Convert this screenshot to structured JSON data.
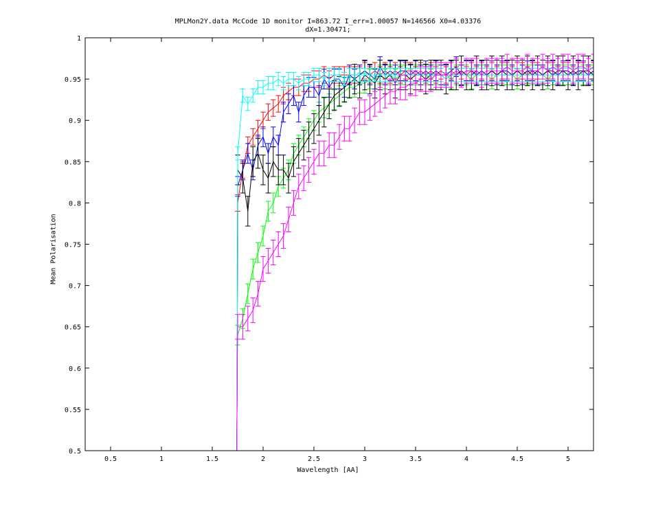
{
  "chart_data": {
    "type": "line",
    "title": "MPLMon2Y.data McCode 1D monitor I=863.72 I_err=1.00057 N=146566 X0=4.03376",
    "subtitle": "dX=1.30471;",
    "xlabel": "Wavelength [AA]",
    "ylabel": "Mean Polarisation",
    "xlim": [
      0.25,
      5.25
    ],
    "ylim": [
      0.5,
      1.0
    ],
    "xticks": [
      "0.5",
      "1",
      "1.5",
      "2",
      "2.5",
      "3",
      "3.5",
      "4",
      "4.5",
      "5"
    ],
    "yticks": [
      "0.5",
      "0.55",
      "0.6",
      "0.65",
      "0.7",
      "0.75",
      "0.8",
      "0.85",
      "0.9",
      "0.95",
      "1"
    ],
    "grid": false,
    "legend": "none",
    "x": [
      1.75,
      1.8,
      1.85,
      1.9,
      1.95,
      2.0,
      2.05,
      2.1,
      2.15,
      2.2,
      2.25,
      2.3,
      2.35,
      2.4,
      2.45,
      2.5,
      2.55,
      2.6,
      2.65,
      2.7,
      2.75,
      2.8,
      2.85,
      2.9,
      2.95,
      3.0,
      3.05,
      3.1,
      3.15,
      3.2,
      3.25,
      3.3,
      3.35,
      3.4,
      3.45,
      3.5,
      3.55,
      3.6,
      3.65,
      3.7,
      3.75,
      3.8,
      3.85,
      3.9,
      3.95,
      4.0,
      4.05,
      4.1,
      4.15,
      4.2,
      4.25,
      4.3,
      4.35,
      4.4,
      4.45,
      4.5,
      4.55,
      4.6,
      4.65,
      4.7,
      4.75,
      4.8,
      4.85,
      4.9,
      4.95,
      5.0,
      5.05,
      5.1,
      5.15,
      5.2,
      5.25
    ],
    "series": [
      {
        "color": "#ff0000",
        "values": [
          0.8,
          0.84,
          0.87,
          0.88,
          0.89,
          0.9,
          0.91,
          0.915,
          0.92,
          0.93,
          0.935,
          0.94,
          0.94,
          0.945,
          0.945,
          0.95,
          0.95,
          0.955,
          0.95,
          0.955,
          0.955,
          0.955,
          0.955,
          0.955,
          0.955,
          0.96,
          0.955,
          0.96,
          0.955,
          0.96,
          0.955,
          0.96,
          0.955,
          0.96,
          0.96,
          0.955,
          0.96,
          0.955,
          0.96,
          0.955,
          0.96,
          0.955,
          0.96,
          0.955,
          0.96,
          0.955,
          0.96,
          0.955,
          0.96,
          0.955,
          0.96,
          0.955,
          0.96,
          0.96,
          0.955,
          0.96,
          0.96,
          0.955,
          0.96,
          0.96,
          0.955,
          0.96,
          0.96,
          0.955,
          0.96,
          0.96,
          0.955,
          0.96,
          0.96,
          0.955,
          0.96
        ],
        "err": 0.01
      },
      {
        "color": "#00ff00",
        "values": [
          0.64,
          0.66,
          0.69,
          0.72,
          0.74,
          0.76,
          0.79,
          0.8,
          0.82,
          0.83,
          0.84,
          0.86,
          0.87,
          0.88,
          0.89,
          0.9,
          0.91,
          0.915,
          0.92,
          0.925,
          0.93,
          0.935,
          0.94,
          0.94,
          0.945,
          0.945,
          0.95,
          0.95,
          0.955,
          0.95,
          0.955,
          0.95,
          0.955,
          0.955,
          0.95,
          0.955,
          0.955,
          0.955,
          0.95,
          0.955,
          0.955,
          0.955,
          0.95,
          0.955,
          0.955,
          0.955,
          0.95,
          0.955,
          0.955,
          0.955,
          0.95,
          0.955,
          0.955,
          0.955,
          0.955,
          0.95,
          0.955,
          0.955,
          0.955,
          0.955,
          0.955,
          0.95,
          0.955,
          0.955,
          0.955,
          0.955,
          0.955,
          0.96,
          0.955,
          0.955,
          0.955
        ],
        "err": 0.012
      },
      {
        "color": "#0000ff",
        "values": [
          0.82,
          0.84,
          0.86,
          0.84,
          0.87,
          0.88,
          0.86,
          0.88,
          0.87,
          0.91,
          0.92,
          0.93,
          0.91,
          0.93,
          0.94,
          0.94,
          0.93,
          0.95,
          0.94,
          0.95,
          0.95,
          0.94,
          0.955,
          0.95,
          0.955,
          0.96,
          0.955,
          0.95,
          0.965,
          0.955,
          0.96,
          0.955,
          0.96,
          0.96,
          0.955,
          0.96,
          0.955,
          0.96,
          0.955,
          0.96,
          0.955,
          0.955,
          0.96,
          0.965,
          0.955,
          0.96,
          0.96,
          0.955,
          0.96,
          0.955,
          0.96,
          0.955,
          0.96,
          0.96,
          0.955,
          0.96,
          0.955,
          0.96,
          0.96,
          0.955,
          0.955,
          0.96,
          0.96,
          0.955,
          0.96,
          0.96,
          0.955,
          0.96,
          0.96,
          0.955,
          0.96
        ],
        "err": 0.012
      },
      {
        "color": "#000000",
        "values": [
          0.84,
          0.83,
          0.79,
          0.85,
          0.86,
          0.84,
          0.83,
          0.85,
          0.84,
          0.84,
          0.83,
          0.85,
          0.86,
          0.87,
          0.88,
          0.89,
          0.9,
          0.91,
          0.92,
          0.93,
          0.935,
          0.94,
          0.945,
          0.95,
          0.945,
          0.955,
          0.95,
          0.945,
          0.955,
          0.95,
          0.955,
          0.945,
          0.955,
          0.955,
          0.95,
          0.955,
          0.955,
          0.95,
          0.955,
          0.955,
          0.955,
          0.95,
          0.955,
          0.955,
          0.96,
          0.955,
          0.955,
          0.96,
          0.955,
          0.955,
          0.96,
          0.955,
          0.96,
          0.955,
          0.955,
          0.96,
          0.955,
          0.96,
          0.955,
          0.96,
          0.955,
          0.96,
          0.955,
          0.96,
          0.96,
          0.955,
          0.96,
          0.955,
          0.96,
          0.96,
          0.955
        ],
        "err": 0.018
      },
      {
        "color": "#00ffff",
        "values": [
          0.86,
          0.93,
          0.92,
          0.93,
          0.94,
          0.94,
          0.945,
          0.945,
          0.95,
          0.945,
          0.95,
          0.95,
          0.945,
          0.95,
          0.95,
          0.955,
          0.955,
          0.95,
          0.955,
          0.955,
          0.955,
          0.95,
          0.955,
          0.955,
          0.955,
          0.955,
          0.955,
          0.955,
          0.955,
          0.955,
          0.955,
          0.955,
          0.955,
          0.955,
          0.955,
          0.955,
          0.955,
          0.955,
          0.955,
          0.955,
          0.955,
          0.95,
          0.955,
          0.955,
          0.955,
          0.955,
          0.955,
          0.955,
          0.955,
          0.955,
          0.955,
          0.955,
          0.955,
          0.955,
          0.955,
          0.955,
          0.955,
          0.955,
          0.955,
          0.955,
          0.955,
          0.955,
          0.955,
          0.955,
          0.955,
          0.955,
          0.955,
          0.955,
          0.955,
          0.955,
          0.955
        ],
        "err": 0.008
      },
      {
        "color": "#ff00ff",
        "values": [
          0.65,
          0.65,
          0.66,
          0.67,
          0.69,
          0.72,
          0.73,
          0.74,
          0.75,
          0.76,
          0.78,
          0.8,
          0.82,
          0.83,
          0.84,
          0.85,
          0.86,
          0.86,
          0.87,
          0.87,
          0.88,
          0.89,
          0.89,
          0.9,
          0.91,
          0.91,
          0.915,
          0.92,
          0.925,
          0.93,
          0.935,
          0.935,
          0.94,
          0.94,
          0.945,
          0.945,
          0.95,
          0.95,
          0.95,
          0.955,
          0.955,
          0.955,
          0.955,
          0.96,
          0.955,
          0.96,
          0.96,
          0.96,
          0.955,
          0.96,
          0.96,
          0.96,
          0.96,
          0.965,
          0.96,
          0.96,
          0.96,
          0.965,
          0.96,
          0.96,
          0.965,
          0.96,
          0.965,
          0.96,
          0.965,
          0.965,
          0.96,
          0.965,
          0.965,
          0.96,
          0.965
        ],
        "err": 0.015
      }
    ]
  }
}
